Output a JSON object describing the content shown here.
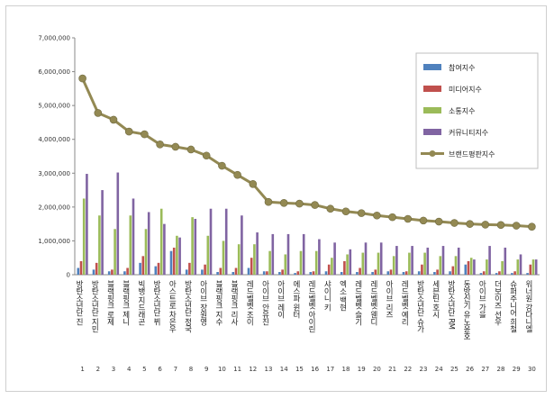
{
  "chart_data": {
    "type": "bar",
    "title": "",
    "xlabel": "",
    "ylabel": "",
    "ylim": [
      0,
      7000000
    ],
    "yticks": [
      "0",
      "1,000,000",
      "2,000,000",
      "3,000,000",
      "4,000,000",
      "5,000,000",
      "6,000,000",
      "7,000,000"
    ],
    "grid": false,
    "legend_position": "top-right",
    "numbers": [
      "1",
      "2",
      "3",
      "4",
      "5",
      "6",
      "7",
      "8",
      "9",
      "10",
      "11",
      "12",
      "13",
      "14",
      "15",
      "16",
      "17",
      "18",
      "19",
      "20",
      "21",
      "22",
      "23",
      "24",
      "25",
      "26",
      "27",
      "28",
      "29",
      "30"
    ],
    "categories": [
      "방탄소년단 진",
      "방탄소년단 지민",
      "블랙핑크 로제",
      "블랙핑크 제니",
      "빅뱅 지드래곤",
      "방탄소년단 뷔",
      "아스트로 차은우",
      "방탄소년단 정국",
      "아이브 장원영",
      "블랙핑크 지수",
      "블랙핑크 리사",
      "레드벨벳 조이",
      "아이브 안유진",
      "아이브 레이",
      "에스파 윈터",
      "레드벨벳 아이린",
      "샤이니 키",
      "엑소 백현",
      "레드벨벳 슬기",
      "레드벨벳 웬디",
      "아이브 리즈",
      "레드벨벳 예리",
      "방탄소년단 슈가",
      "세븐틴 호시",
      "방탄소년단 RM",
      "동방신기 유노윤호",
      "아이브 가을",
      "더보이즈 선우",
      "슈퍼주니어 희철",
      "워너원 강다니엘"
    ],
    "series": [
      {
        "name": "참여지수",
        "kind": "bar",
        "color": "#4f81bd",
        "values": [
          200000,
          150000,
          100000,
          100000,
          350000,
          250000,
          700000,
          150000,
          150000,
          80000,
          80000,
          200000,
          100000,
          80000,
          50000,
          80000,
          100000,
          80000,
          80000,
          80000,
          100000,
          80000,
          100000,
          80000,
          100000,
          300000,
          50000,
          50000,
          50000,
          50000
        ]
      },
      {
        "name": "미디어지수",
        "kind": "bar",
        "color": "#c0504d",
        "values": [
          400000,
          350000,
          150000,
          200000,
          550000,
          350000,
          800000,
          350000,
          300000,
          200000,
          200000,
          500000,
          100000,
          150000,
          100000,
          100000,
          300000,
          400000,
          200000,
          150000,
          150000,
          100000,
          300000,
          150000,
          250000,
          400000,
          100000,
          100000,
          100000,
          300000
        ]
      },
      {
        "name": "소통지수",
        "kind": "bar",
        "color": "#9bbb59",
        "values": [
          2250000,
          1750000,
          1350000,
          1750000,
          1350000,
          1950000,
          1150000,
          1700000,
          1150000,
          1000000,
          900000,
          900000,
          700000,
          600000,
          700000,
          700000,
          500000,
          600000,
          650000,
          650000,
          550000,
          650000,
          650000,
          550000,
          550000,
          500000,
          450000,
          400000,
          450000,
          450000
        ]
      },
      {
        "name": "커뮤니티지수",
        "kind": "bar",
        "color": "#8064a2",
        "values": [
          2980000,
          2500000,
          3020000,
          2250000,
          1850000,
          1500000,
          1100000,
          1650000,
          1950000,
          1950000,
          1750000,
          1250000,
          1200000,
          1200000,
          1200000,
          1050000,
          950000,
          750000,
          950000,
          950000,
          850000,
          850000,
          800000,
          850000,
          800000,
          450000,
          850000,
          800000,
          600000,
          450000
        ]
      },
      {
        "name": "브랜드평판지수",
        "kind": "line",
        "color": "#938953",
        "marker": "#938953",
        "values": [
          5800000,
          4780000,
          4580000,
          4230000,
          4150000,
          3850000,
          3780000,
          3700000,
          3520000,
          3220000,
          2950000,
          2680000,
          2150000,
          2120000,
          2100000,
          2060000,
          1950000,
          1870000,
          1820000,
          1750000,
          1700000,
          1650000,
          1600000,
          1570000,
          1530000,
          1500000,
          1480000,
          1470000,
          1450000,
          1420000
        ]
      }
    ]
  }
}
